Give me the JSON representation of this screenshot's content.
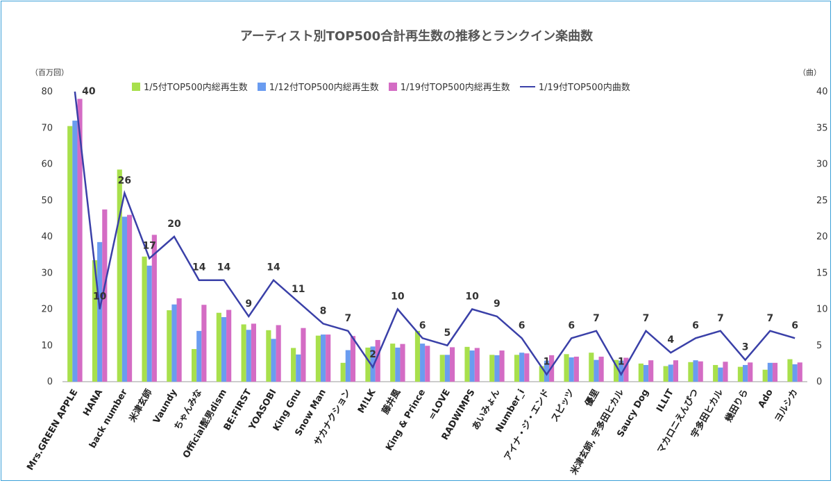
{
  "chart_data": {
    "type": "bar",
    "title": "アーティスト別TOP500合計再生数の推移とランクイン楽曲数",
    "ylabel": "（百万回）",
    "y2label": "（曲）",
    "ylim": [
      0,
      80
    ],
    "y2lim": [
      0,
      40
    ],
    "yticks": [
      "0",
      "10",
      "20",
      "30",
      "40",
      "50",
      "60",
      "70",
      "80"
    ],
    "y2ticks": [
      "0",
      "5",
      "10",
      "15",
      "20",
      "25",
      "30",
      "35",
      "40"
    ],
    "categories": [
      "Mrs.GREEN APPLE",
      "HANA",
      "back number",
      "米津玄師",
      "Vaundy",
      "ちゃんみな",
      "Official髭男dism",
      "BE:FIRST",
      "YOASOBI",
      "King Gnu",
      "Snow Man",
      "サカナクション",
      "M!LK",
      "藤井風",
      "King & Prince",
      "=LOVE",
      "RADWIMPS",
      "あいみょん",
      "Number_i",
      "アイナ・ジ・エンド",
      "スピッツ",
      "優里",
      "米津玄師, 宇多田ヒカル",
      "Saucy Dog",
      "ILLIT",
      "マカロニえんぴつ",
      "宇多田ヒカル",
      "幾田りら",
      "Ado",
      "ヨルシカ"
    ],
    "series": [
      {
        "name": "1/5付TOP500内総再生数",
        "type": "bar",
        "color": "#a8e04c",
        "values": [
          70.5,
          33.5,
          58.5,
          34.5,
          19.7,
          9,
          19,
          15.8,
          14.2,
          9.3,
          12.7,
          5.2,
          9.4,
          10.5,
          14,
          7.4,
          9.6,
          7.4,
          7.4,
          4.3,
          7.6,
          8,
          6,
          5,
          4.3,
          5.4,
          4.6,
          4.1,
          3.3,
          6.2
        ]
      },
      {
        "name": "1/12付TOP500内総再生数",
        "type": "bar",
        "color": "#6a9cf0",
        "values": [
          72,
          38.5,
          45.5,
          32,
          21.3,
          14,
          17.8,
          14.3,
          11.8,
          7.5,
          13,
          8.7,
          9.7,
          9.4,
          10.5,
          7.4,
          8.6,
          7.3,
          8,
          5.8,
          6.7,
          6,
          5.8,
          4.6,
          4.7,
          5.9,
          3.9,
          4.6,
          5.2,
          4.8
        ]
      },
      {
        "name": "1/19付TOP500内総再生数",
        "type": "bar",
        "color": "#d46cc4",
        "values": [
          78,
          47.5,
          46,
          40.5,
          23,
          21.2,
          19.8,
          16,
          15.6,
          14.8,
          13,
          12.6,
          11.5,
          10.4,
          9.9,
          9.5,
          9.3,
          8.6,
          7.8,
          7.3,
          6.9,
          6.9,
          6.6,
          5.9,
          5.9,
          5.6,
          5.5,
          5.3,
          5.2,
          5.3
        ]
      },
      {
        "name": "1/19付TOP500内曲数",
        "type": "line",
        "axis": "right",
        "color": "#3a40a8",
        "values": [
          40,
          10,
          26,
          17,
          20,
          14,
          14,
          9,
          14,
          11,
          8,
          7,
          2,
          10,
          6,
          5,
          10,
          9,
          6,
          1,
          6,
          7,
          1,
          7,
          4,
          6,
          7,
          3,
          7,
          6
        ]
      }
    ]
  }
}
